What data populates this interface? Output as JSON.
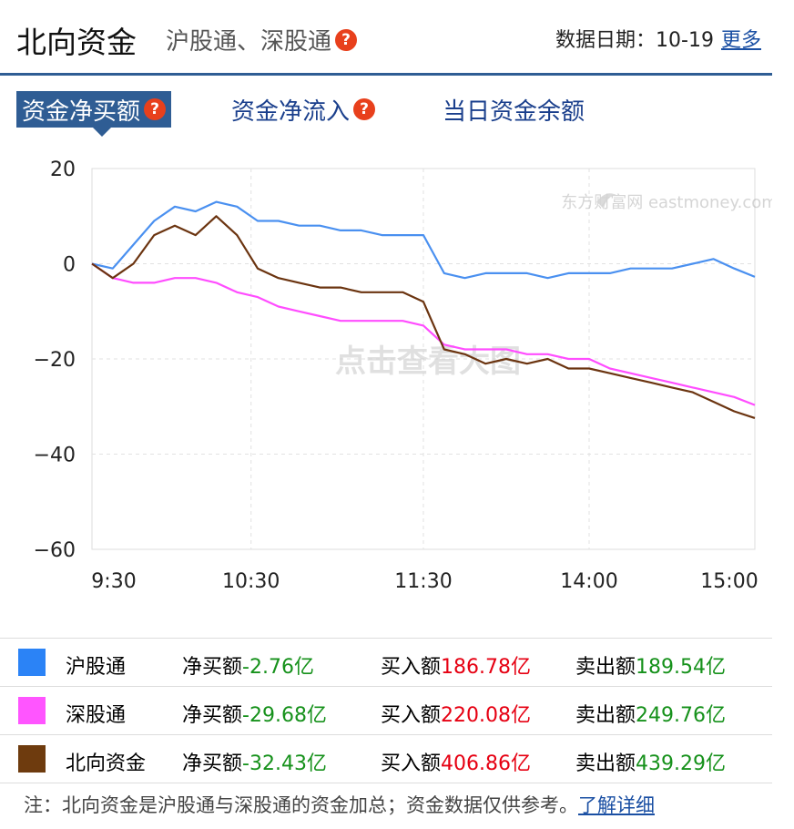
{
  "header": {
    "title": "北向资金",
    "subtitle": "沪股通、深股通",
    "date_label": "数据日期：10-19",
    "more_link": "更多"
  },
  "tabs": [
    {
      "label": "资金净买额",
      "active": true,
      "help": true
    },
    {
      "label": "资金净流入",
      "active": false,
      "help": true
    },
    {
      "label": "当日资金余额",
      "active": false,
      "help": false
    }
  ],
  "chart_data": {
    "type": "line",
    "x_ticks": [
      "9:30",
      "10:30",
      "11:30",
      "14:00",
      "15:00"
    ],
    "ylim": [
      -60,
      20
    ],
    "y_ticks": [
      "20",
      "0",
      "−20",
      "−40",
      "−60"
    ],
    "grid": true,
    "watermark": "东方财富网 eastmoney.com",
    "overlay_text": "点击查看大图",
    "series": [
      {
        "name": "沪股通",
        "color": "#4a90f0",
        "values": [
          0,
          -1,
          4,
          9,
          12,
          11,
          13,
          12,
          9,
          9,
          8,
          8,
          7,
          7,
          6,
          6,
          6,
          -2,
          -3,
          -2,
          -2,
          -2,
          -3,
          -2,
          -2,
          -2,
          -1,
          -1,
          -1,
          0,
          1,
          -1,
          -2.76
        ]
      },
      {
        "name": "深股通",
        "color": "#ff4dff",
        "values": [
          0,
          -3,
          -4,
          -4,
          -3,
          -3,
          -4,
          -6,
          -7,
          -9,
          -10,
          -11,
          -12,
          -12,
          -12,
          -12,
          -13,
          -17,
          -18,
          -18,
          -18,
          -19,
          -19,
          -20,
          -20,
          -22,
          -23,
          -24,
          -25,
          -26,
          -27,
          -28,
          -29.68
        ]
      },
      {
        "name": "北向资金",
        "color": "#6b3410",
        "values": [
          0,
          -3,
          0,
          6,
          8,
          6,
          10,
          6,
          -1,
          -3,
          -4,
          -5,
          -5,
          -6,
          -6,
          -6,
          -8,
          -18,
          -19,
          -21,
          -20,
          -21,
          -20,
          -22,
          -22,
          -23,
          -24,
          -25,
          -26,
          -27,
          -29,
          -31,
          -32.43
        ]
      }
    ]
  },
  "legend": [
    {
      "name": "沪股通",
      "color": "#2b83f6",
      "net_label": "净买额",
      "net": "-2.76亿",
      "buy_label": "买入额",
      "buy": "186.78亿",
      "sell_label": "卖出额",
      "sell": "189.54亿"
    },
    {
      "name": "深股通",
      "color": "#ff55ff",
      "net_label": "净买额",
      "net": "-29.68亿",
      "buy_label": "买入额",
      "buy": "220.08亿",
      "sell_label": "卖出额",
      "sell": "249.76亿"
    },
    {
      "name": "北向资金",
      "color": "#6e3b0e",
      "net_label": "净买额",
      "net": "-32.43亿",
      "buy_label": "买入额",
      "buy": "406.86亿",
      "sell_label": "卖出额",
      "sell": "439.29亿"
    }
  ],
  "note": {
    "text": "注：北向资金是沪股通与深股通的资金加总；资金数据仅供参考。",
    "link": "了解详细"
  }
}
